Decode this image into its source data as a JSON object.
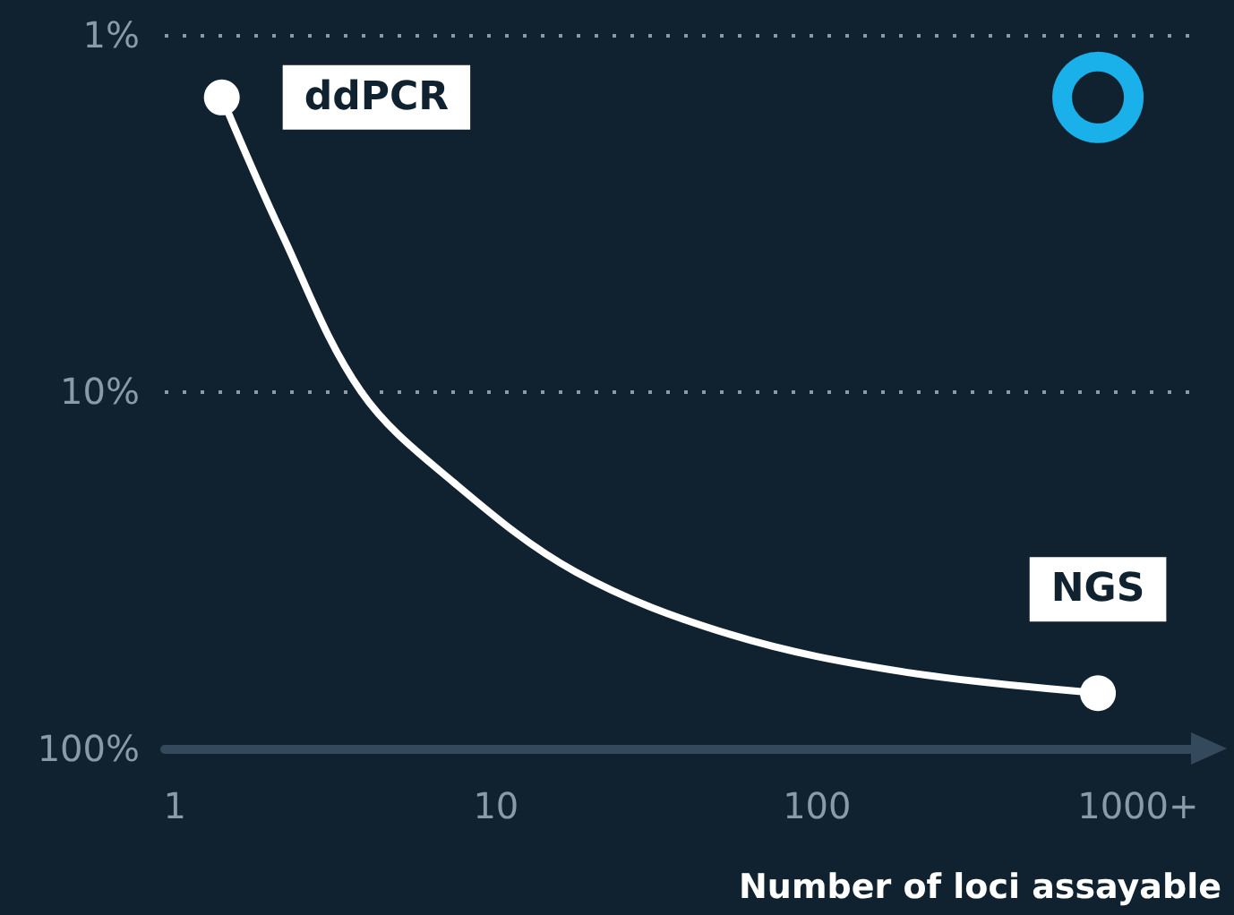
{
  "chart_data": {
    "type": "line",
    "xlabel": "Number of loci assayable",
    "log": "xy",
    "grid": "y",
    "marker": "none",
    "line_style": "solid",
    "xlim": [
      0.93,
      1500
    ],
    "xticks": [
      1,
      10,
      100,
      {
        "value": 1000,
        "label": "1000+"
      }
    ],
    "ylim": [
      100,
      0.8
    ],
    "yticks": [
      {
        "value": 1,
        "label": "1%"
      },
      {
        "value": 10,
        "label": "10%"
      },
      {
        "value": 100,
        "label": "100%"
      }
    ],
    "series": [
      {
        "type": "line",
        "color": "#ffffff",
        "x": [
          1.4,
          2.15,
          3.8,
          7.4,
          17.7,
          54,
          186,
          750
        ],
        "values": [
          1.5,
          3.6,
          10,
          18,
          32,
          48,
          61,
          70
        ]
      },
      {
        "type": "scatter",
        "marker": "circle",
        "color": "#ffffff",
        "x": [
          1.4,
          750
        ],
        "values": [
          1.5,
          70
        ]
      },
      {
        "type": "scatter",
        "marker": "circle",
        "color": "#1ab0ea",
        "x": [
          750
        ],
        "values": [
          1.5
        ]
      }
    ],
    "annotations": [
      {
        "text": "ddPCR",
        "x": 1.4,
        "y": 1.5
      },
      {
        "text": "NGS",
        "x": 750,
        "y": 70
      }
    ]
  }
}
